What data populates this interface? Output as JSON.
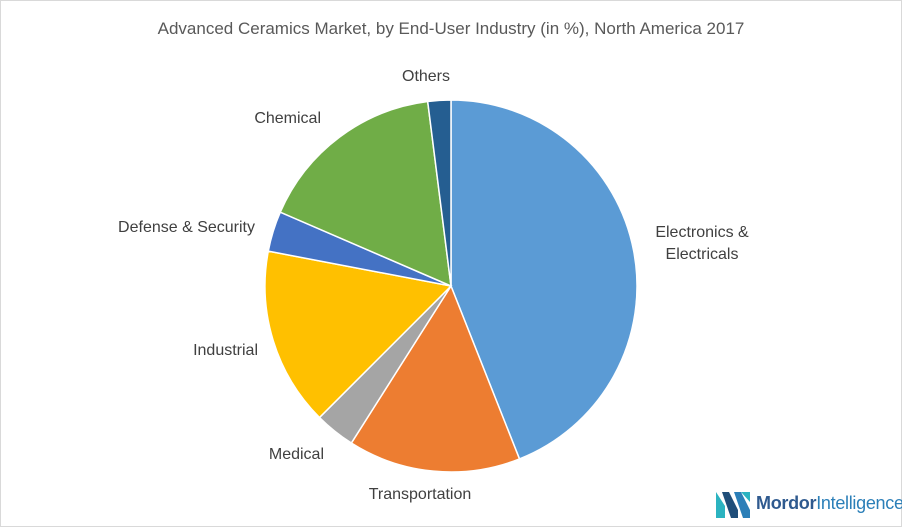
{
  "chart_data": {
    "type": "pie",
    "title": "Advanced Ceramics Market, by  End-User Industry (in %), North America 2017",
    "categories": [
      "Electronics & Electricals",
      "Transportation",
      "Medical",
      "Industrial",
      "Defense & Security",
      "Chemical",
      "Others"
    ],
    "values": [
      44,
      15,
      3.5,
      15.5,
      3.5,
      16.5,
      2
    ],
    "colors": [
      "#5b9bd5",
      "#ed7d31",
      "#a5a5a5",
      "#ffc000",
      "#4472c4",
      "#70ad47",
      "#255e91"
    ],
    "legend": "none",
    "labels_outside": true
  },
  "labels": {
    "electronics_line1": "Electronics &",
    "electronics_line2": "Electricals",
    "transportation": "Transportation",
    "medical": "Medical",
    "industrial": "Industrial",
    "defense": "Defense & Security",
    "chemical": "Chemical",
    "others": "Others"
  },
  "logo": {
    "word1": "Mordor",
    "word2": "Intelligence"
  }
}
